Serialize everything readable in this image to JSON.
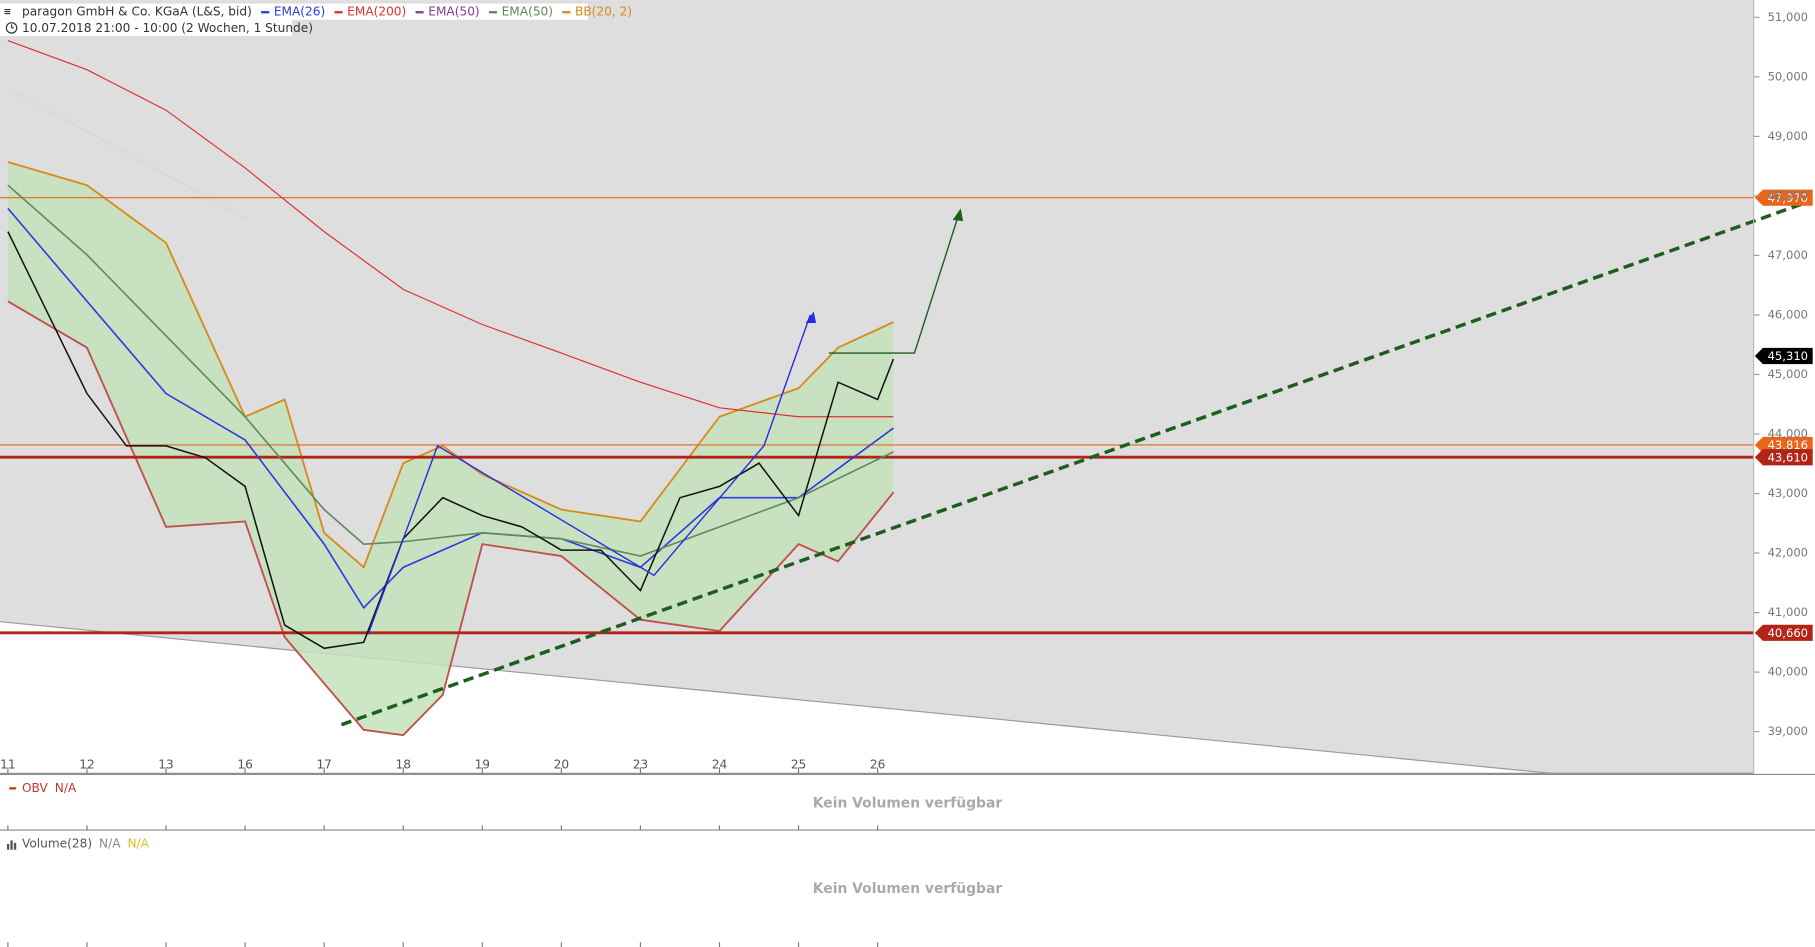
{
  "chart_data": {
    "type": "line",
    "title": "paragon GmbH & Co. KGaA (L&S, bid)",
    "subtitle": "10.07.2018 21:00 - 10:00   (2 Wochen, 1 Stunde)",
    "xlim": [
      -0.1,
      22.08
    ],
    "xticks": [
      {
        "value": 0,
        "label": "11"
      },
      {
        "value": 1,
        "label": "12"
      },
      {
        "value": 2,
        "label": "13"
      },
      {
        "value": 3,
        "label": "16"
      },
      {
        "value": 4,
        "label": "17"
      },
      {
        "value": 5,
        "label": "18"
      },
      {
        "value": 6,
        "label": "19"
      },
      {
        "value": 7,
        "label": "20"
      },
      {
        "value": 8,
        "label": "23"
      },
      {
        "value": 9,
        "label": "24"
      },
      {
        "value": 10,
        "label": "25"
      },
      {
        "value": 11,
        "label": "26"
      }
    ],
    "ylim": [
      38300,
      51290
    ],
    "yticks": [
      {
        "value": 39000,
        "label": "39,000"
      },
      {
        "value": 40000,
        "label": "40,000"
      },
      {
        "value": 41000,
        "label": "41,000"
      },
      {
        "value": 42000,
        "label": "42,000"
      },
      {
        "value": 43000,
        "label": "43,000"
      },
      {
        "value": 44000,
        "label": "44,000"
      },
      {
        "value": 45000,
        "label": "45,000"
      },
      {
        "value": 46000,
        "label": "46,000"
      },
      {
        "value": 47000,
        "label": "47,000"
      },
      {
        "value": 48000,
        "label": "48,000"
      },
      {
        "value": 49000,
        "label": "49,000"
      },
      {
        "value": 50000,
        "label": "50,000"
      },
      {
        "value": 51000,
        "label": "51,000"
      }
    ],
    "price": {
      "color": "#111111",
      "x": [
        0,
        0.5,
        1,
        1.5,
        2,
        2.5,
        3,
        3.5,
        4,
        4.5,
        5,
        5.5,
        6,
        6.5,
        7,
        7.5,
        8,
        8.5,
        9,
        9.5,
        10,
        10.5,
        11,
        11.2
      ],
      "values": [
        47400,
        46040,
        44680,
        43800,
        43800,
        43600,
        43120,
        40790,
        40400,
        40500,
        42240,
        42930,
        42630,
        42440,
        42050,
        42050,
        41370,
        42930,
        43120,
        43510,
        42630,
        44870,
        44580,
        45260
      ]
    },
    "bands": [
      {
        "name": "BB(20, 2)",
        "color": "#d88a1c",
        "lower_color": "#c0504d",
        "fill": "#c4e3bc",
        "x": [
          0,
          1,
          2,
          3,
          3.5,
          4,
          4.5,
          5,
          5.5,
          6,
          7,
          8,
          9,
          10,
          10.5,
          11.2
        ],
        "upper": [
          48570,
          48180,
          47210,
          44290,
          44580,
          42340,
          41760,
          43510,
          43800,
          43320,
          42730,
          42530,
          44290,
          44770,
          45450,
          45880
        ],
        "lower": [
          46230,
          45450,
          42440,
          42530,
          40590,
          39810,
          39030,
          38940,
          39620,
          42150,
          41950,
          40880,
          40690,
          42150,
          41860,
          43020
        ]
      }
    ],
    "series": [
      {
        "name": "EMA(26)",
        "color": "#2a3be0",
        "x": [
          0,
          1,
          2,
          3,
          4,
          4.5,
          5,
          6,
          7,
          8,
          9,
          10,
          11.2
        ],
        "values": [
          47790,
          46230,
          44680,
          43900,
          42150,
          41080,
          41760,
          42340,
          42240,
          41760,
          42930,
          42930,
          44100
        ]
      },
      {
        "name": "EMA(200)",
        "color": "#e03030",
        "x": [
          0,
          1,
          2,
          3,
          4,
          5,
          6,
          7,
          8,
          9,
          10,
          11.2
        ],
        "values": [
          50610,
          50120,
          49440,
          48470,
          47400,
          46430,
          45840,
          45360,
          44870,
          44440,
          44290,
          44290
        ]
      },
      {
        "name": "EMA(50)",
        "color": "#8a3a9a"
      },
      {
        "name": "EMA(50)",
        "color": "#5e8a5a",
        "x": [
          0,
          1,
          2,
          3,
          4,
          4.5,
          5,
          6,
          7,
          8,
          9,
          10,
          11.2
        ],
        "values": [
          48180,
          47010,
          45650,
          44290,
          42730,
          42150,
          42190,
          42340,
          42240,
          41950,
          42440,
          42930,
          43700
        ]
      }
    ],
    "levels": [
      {
        "value": 47970,
        "label": "47,970",
        "color": "#e8651a",
        "width": 1,
        "line": true
      },
      {
        "value": 45310,
        "label": "45,310",
        "color": "#000000",
        "width": 0,
        "line": false
      },
      {
        "value": 43816,
        "label": "43,816",
        "color": "#e8651a",
        "width": 1,
        "line": true
      },
      {
        "value": 43610,
        "label": "43,610",
        "color": "#b22418",
        "width": 2.5,
        "line": true
      },
      {
        "value": 40660,
        "label": "40,660",
        "color": "#b22418",
        "width": 2.5,
        "line": true
      }
    ],
    "panels": [
      {
        "name": "OBV",
        "status": [
          "N/A"
        ],
        "message": "Kein Volumen verfügbar"
      },
      {
        "name": "Volume(28)",
        "status": [
          "N/A",
          "N/A"
        ],
        "message": "Kein Volumen verfügbar"
      }
    ]
  }
}
